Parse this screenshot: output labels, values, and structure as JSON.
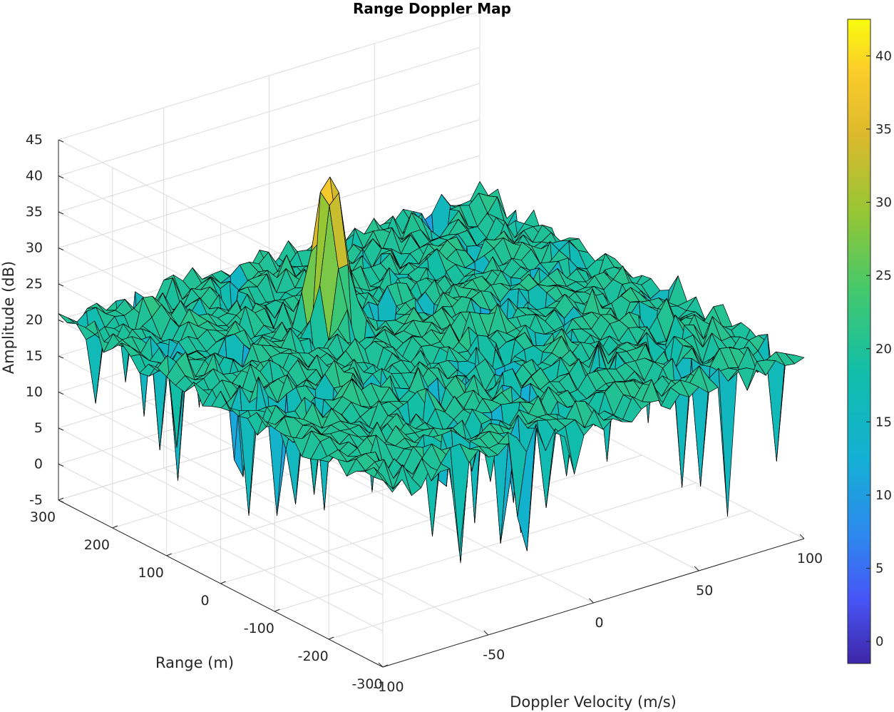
{
  "chart_data": {
    "type": "surface",
    "title": "Range Doppler Map",
    "xlabel": "Doppler Velocity (m/s)",
    "ylabel": "Range (m)",
    "zlabel": "Amplitude (dB)",
    "x_ticks": [
      -100,
      -50,
      0,
      50,
      100
    ],
    "y_ticks": [
      -300,
      -200,
      -100,
      0,
      100,
      200,
      300
    ],
    "z_ticks": [
      -5,
      0,
      5,
      10,
      15,
      20,
      25,
      30,
      35,
      40,
      45
    ],
    "xlim": [
      -100,
      100
    ],
    "ylim": [
      -300,
      300
    ],
    "zlim": [
      -5,
      45
    ],
    "noise_floor_db": 20,
    "peak": {
      "doppler": -20,
      "range": 110,
      "amplitude": 42
    },
    "colormap": "parula",
    "colorbar": {
      "ticks": [
        0,
        5,
        10,
        15,
        20,
        25,
        30,
        35,
        40
      ],
      "range": [
        -1.5,
        42.5
      ]
    },
    "grid": true
  }
}
